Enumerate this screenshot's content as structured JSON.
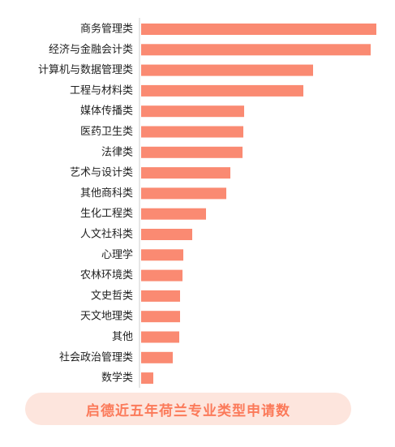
{
  "chart_data": {
    "type": "bar",
    "orientation": "horizontal",
    "categories": [
      "商务管理类",
      "经济与金融会计类",
      "计算机与数据管理类",
      "工程与材料类",
      "媒体传播类",
      "医药卫生类",
      "法律类",
      "艺术与设计类",
      "其他商科类",
      "生化工程类",
      "人文社科类",
      "心理学",
      "农林环境类",
      "文史哲类",
      "天文地理类",
      "其他",
      "社会政治管理类",
      "数学类"
    ],
    "values": [
      290,
      283,
      212,
      200,
      127,
      126,
      125,
      110,
      105,
      80,
      63,
      52,
      51,
      48,
      48,
      47,
      39,
      15
    ],
    "xlim": [
      0,
      290
    ],
    "grid": false,
    "legend": "none",
    "bar_color": "#fa8a72"
  },
  "caption": {
    "text": "启德近五年荷兰专业类型申请数",
    "text_color": "#fb7a5a",
    "bg_color": "#fde5dd"
  }
}
